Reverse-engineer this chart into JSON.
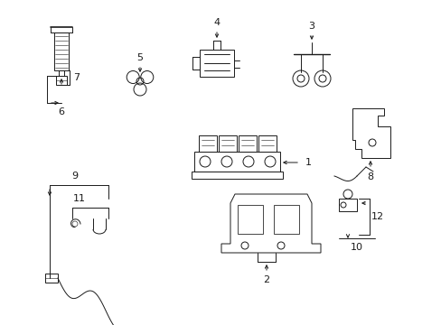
{
  "bg_color": "#ffffff",
  "line_color": "#1a1a1a",
  "lw": 0.7,
  "fs": 8,
  "fig_width": 4.89,
  "fig_height": 3.6,
  "dpi": 100
}
